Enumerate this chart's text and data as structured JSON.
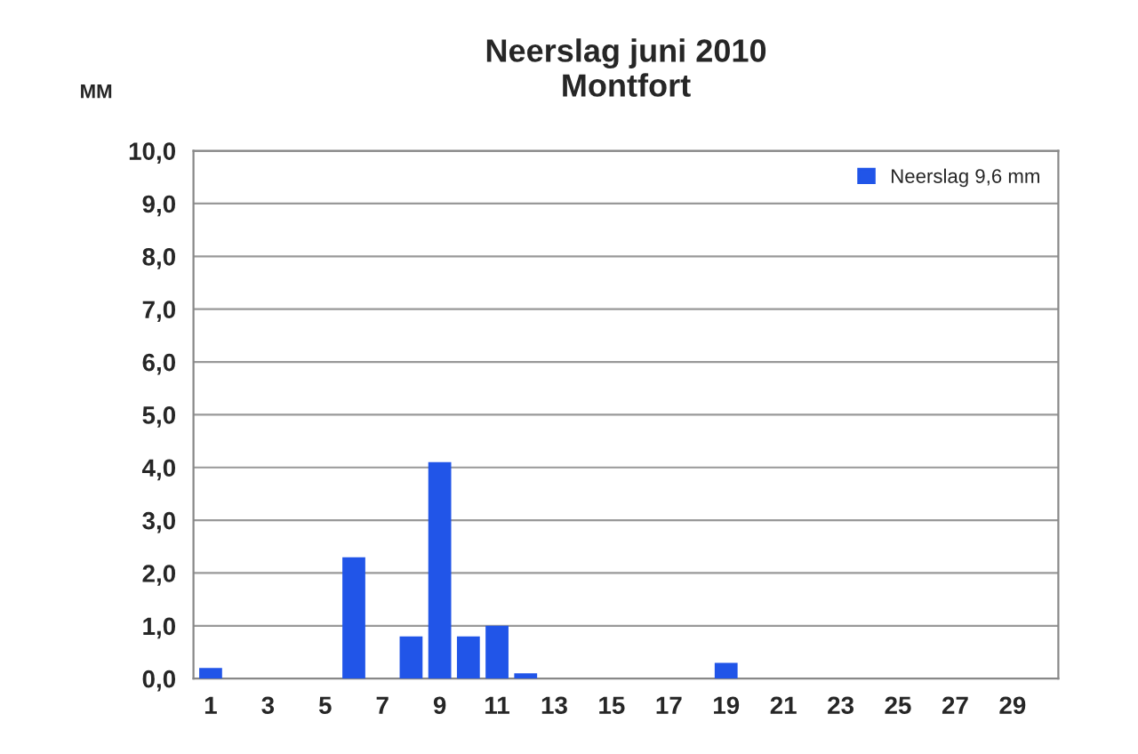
{
  "chart_data": {
    "type": "bar",
    "title": "Neerslag juni 2010\nMontfort",
    "ylabel": "MM",
    "categories": [
      "1",
      null,
      "3",
      null,
      "5",
      null,
      "7",
      null,
      "9",
      null,
      "11",
      null,
      "13",
      null,
      "15",
      null,
      "17",
      null,
      "19",
      null,
      "21",
      null,
      "23",
      null,
      "25",
      null,
      "27",
      null,
      "29",
      null
    ],
    "series": [
      {
        "name": "Neerslag 9,6 mm",
        "color": "#2155e8",
        "values": [
          0.2,
          null,
          null,
          null,
          null,
          2.3,
          null,
          0.8,
          4.1,
          0.8,
          1.0,
          0.1,
          null,
          null,
          null,
          null,
          null,
          null,
          0.3,
          null,
          null,
          null,
          null,
          null,
          null,
          null,
          null,
          null,
          null,
          null
        ]
      }
    ],
    "ylim": [
      0,
      10
    ],
    "yticks": [
      {
        "value": 0,
        "label": "0,0"
      },
      {
        "value": 1,
        "label": "1,0"
      },
      {
        "value": 2,
        "label": "2,0"
      },
      {
        "value": 3,
        "label": "3,0"
      },
      {
        "value": 4,
        "label": "4,0"
      },
      {
        "value": 5,
        "label": "5,0"
      },
      {
        "value": 6,
        "label": "6,0"
      },
      {
        "value": 7,
        "label": "7,0"
      },
      {
        "value": 8,
        "label": "8,0"
      },
      {
        "value": 9,
        "label": "9,0"
      },
      {
        "value": 10,
        "label": "10,0"
      }
    ],
    "grid": "y",
    "legend": "top right"
  }
}
